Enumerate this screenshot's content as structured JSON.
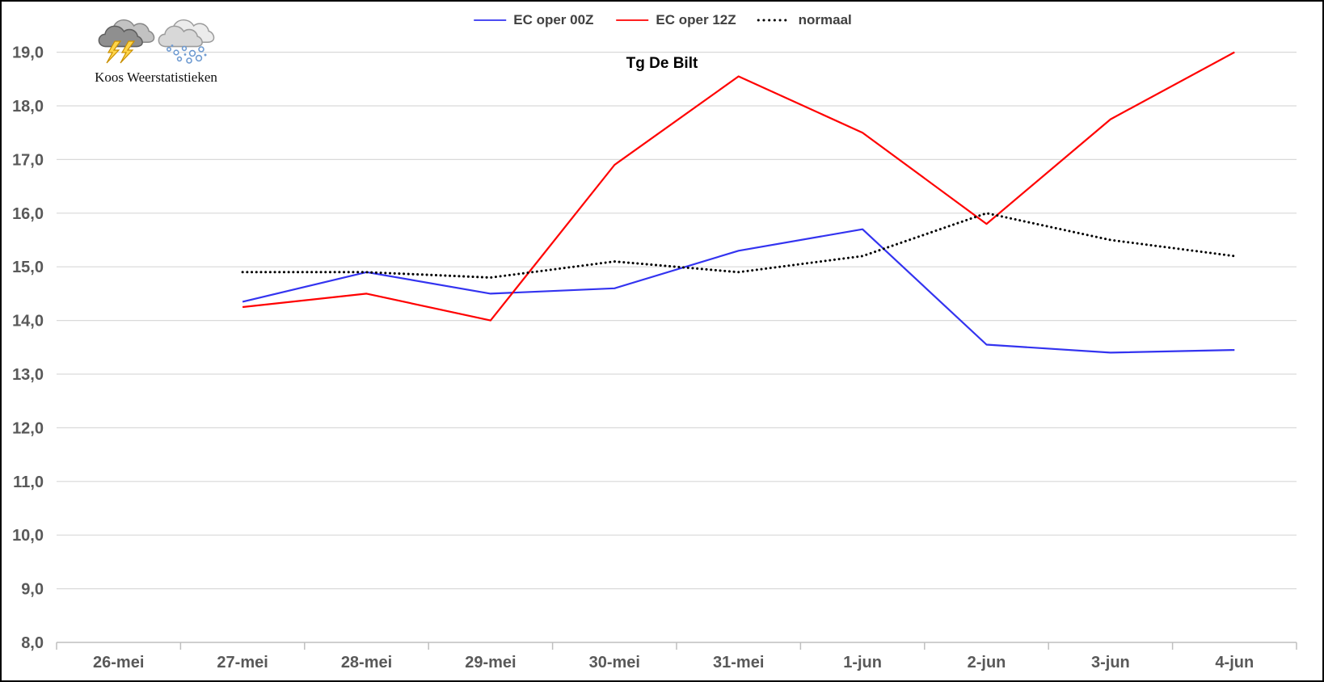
{
  "logo": {
    "text": "Koos Weerstatistieken",
    "icons": [
      "storm-cloud-lightning-icon",
      "snow-cloud-icon"
    ]
  },
  "colors": {
    "series_blue": "#3333F0",
    "series_red": "#FF0000",
    "series_black": "#000000",
    "gridline": "#D9D9D9",
    "axis_line": "#BFBFBF",
    "tick_label": "#595959"
  },
  "chart_data": {
    "type": "line",
    "title": "Tg De Bilt",
    "xlabel": "",
    "ylabel": "",
    "grid": "horizontal",
    "legend_position": "top-center",
    "categories": [
      "26-mei",
      "27-mei",
      "28-mei",
      "29-mei",
      "30-mei",
      "31-mei",
      "1-jun",
      "2-jun",
      "3-jun",
      "4-jun"
    ],
    "y_axis": {
      "min": 8.0,
      "max": 19.0,
      "step": 1.0,
      "tick_labels": [
        "8,0",
        "9,0",
        "10,0",
        "11,0",
        "12,0",
        "13,0",
        "14,0",
        "15,0",
        "16,0",
        "17,0",
        "18,0",
        "19,0"
      ]
    },
    "series": [
      {
        "name": "EC oper 00Z",
        "color": "#3333F0",
        "style": "solid",
        "values": [
          null,
          14.35,
          14.9,
          14.5,
          14.6,
          15.3,
          15.7,
          13.55,
          13.4,
          13.45
        ]
      },
      {
        "name": "EC oper 12Z",
        "color": "#FF0000",
        "style": "solid",
        "values": [
          null,
          14.25,
          14.5,
          14.0,
          16.9,
          18.55,
          17.5,
          15.8,
          17.75,
          19.0
        ]
      },
      {
        "name": "normaal",
        "color": "#000000",
        "style": "dotted",
        "values": [
          null,
          14.9,
          14.9,
          14.8,
          15.1,
          14.9,
          15.2,
          16.0,
          15.5,
          15.2
        ]
      }
    ]
  }
}
